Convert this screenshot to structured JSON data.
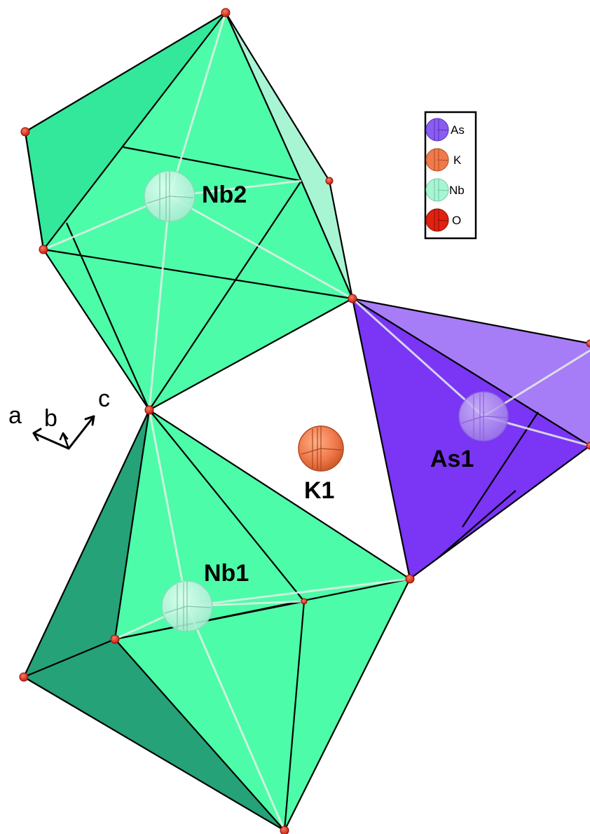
{
  "atom_labels": {
    "nb2": "Nb2",
    "nb1": "Nb1",
    "as1": "As1",
    "k1": "K1"
  },
  "axes": {
    "a": "a",
    "b": "b",
    "c": "c"
  },
  "legend": {
    "items": [
      {
        "label": "As",
        "color": "#8a5cf0"
      },
      {
        "label": "K",
        "color": "#f07a4c"
      },
      {
        "label": "Nb",
        "color": "#a8f5d4"
      },
      {
        "label": "O",
        "color": "#e22010"
      }
    ]
  },
  "colors": {
    "nb_polyhedron": "#4dfca8",
    "nb_polyhedron_shadow": "#25a277",
    "nb_polyhedron_dark_face": "#33e89a",
    "nb_polyhedron_light_face": "#a8f5d4",
    "as_polyhedron": "#7a35f5",
    "as_polyhedron_light": "#a77cf7",
    "oxygen": "#e22010",
    "potassium": "#f07a4c",
    "niobium_atom": "#bdf5dc",
    "arsenic_atom": "#b69af0"
  }
}
